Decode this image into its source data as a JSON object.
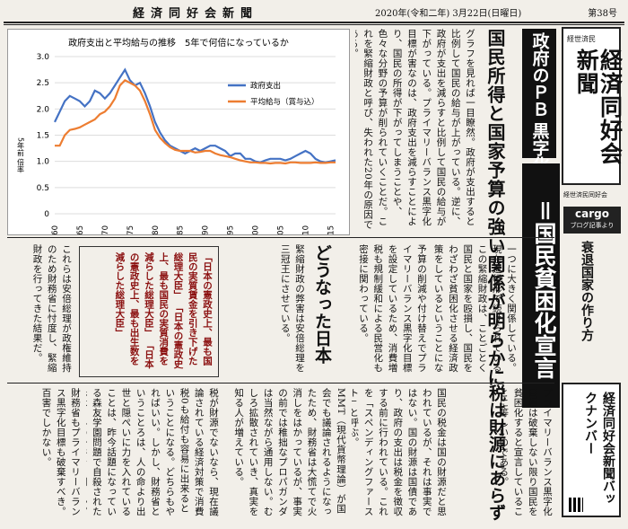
{
  "header": {
    "paper_name": "経済同好会新聞",
    "date": "2020年(令和二年) 3月22日(日曜日)",
    "issue": "第38号"
  },
  "chart_data": {
    "type": "line",
    "title": "政府支出と平均給与の推移　5年で何倍になっているか",
    "ylabel": "5年前 倍率",
    "xlabel": "",
    "x": [
      1960,
      1961,
      1962,
      1963,
      1964,
      1965,
      1966,
      1967,
      1968,
      1969,
      1970,
      1971,
      1972,
      1973,
      1974,
      1975,
      1976,
      1977,
      1978,
      1979,
      1980,
      1981,
      1982,
      1983,
      1984,
      1985,
      1986,
      1987,
      1988,
      1989,
      1990,
      1991,
      1992,
      1993,
      1994,
      1995,
      1996,
      1997,
      1998,
      1999,
      2000,
      2001,
      2002,
      2003,
      2004,
      2005,
      2006,
      2007,
      2008,
      2009,
      2010,
      2011,
      2012,
      2013,
      2014,
      2015,
      2016
    ],
    "ylim": [
      0,
      3.0
    ],
    "yticks": [
      "0",
      "0.5",
      "1.0",
      "1.5",
      "2.0",
      "2.5",
      "3.0"
    ],
    "xticks": [
      "1960",
      "1965",
      "1970",
      "1975",
      "1980",
      "1985",
      "1990",
      "1995",
      "2000",
      "2005",
      "2010",
      "2015"
    ],
    "series": [
      {
        "name": "政府支出",
        "color": "#4472c4",
        "values": [
          1.75,
          1.95,
          2.15,
          2.25,
          2.2,
          2.15,
          2.05,
          2.15,
          2.35,
          2.3,
          2.2,
          2.3,
          2.45,
          2.6,
          2.75,
          2.55,
          2.45,
          2.5,
          2.3,
          2.05,
          1.75,
          1.55,
          1.4,
          1.3,
          1.25,
          1.2,
          1.15,
          1.2,
          1.25,
          1.2,
          1.25,
          1.3,
          1.3,
          1.25,
          1.2,
          1.1,
          1.15,
          1.15,
          1.05,
          1.05,
          1.0,
          0.98,
          1.02,
          1.05,
          1.05,
          1.05,
          1.02,
          1.05,
          1.1,
          1.15,
          1.2,
          1.15,
          1.05,
          1.0,
          0.98,
          1.0,
          1.02
        ]
      },
      {
        "name": "平均給与（賞与込）",
        "color": "#ed7d31",
        "values": [
          1.3,
          1.3,
          1.5,
          1.6,
          1.62,
          1.65,
          1.7,
          1.75,
          1.8,
          1.9,
          1.95,
          2.05,
          2.2,
          2.45,
          2.55,
          2.5,
          2.45,
          2.35,
          2.15,
          1.9,
          1.6,
          1.45,
          1.35,
          1.27,
          1.22,
          1.2,
          1.2,
          1.2,
          1.17,
          1.18,
          1.2,
          1.2,
          1.15,
          1.12,
          1.1,
          1.08,
          1.05,
          1.02,
          1.0,
          0.98,
          0.98,
          0.97,
          0.97,
          0.96,
          0.97,
          0.97,
          0.96,
          0.98,
          0.98,
          0.97,
          0.97,
          0.97,
          0.98,
          0.97,
          0.97,
          0.98,
          0.98
        ]
      }
    ]
  },
  "masthead": {
    "small": "経世済民",
    "title": "経済同好会新聞",
    "sub": "経世済民同好会"
  },
  "cargo": {
    "label": "cargo",
    "sub": "ブログ記事より",
    "article_title": "衰退国家の作り方"
  },
  "backnumber": {
    "title": "経済同好会新聞バックナンバー"
  },
  "headlines": {
    "black": [
      "政府のＰＢ",
      "黒字化目標"
    ],
    "big": "＝国民貧困化宣言",
    "sub": "国民所得と国家予算の強い関係が明らかに",
    "doto": "どうなった日本",
    "zei": "税は財源にあらず"
  },
  "columns": {
    "top_right": "グラフを見れば一目瞭然。政府が支出すると比例して国民の給与が上がっている。逆に、政府が支出を減らすと比例して国民の給与が下がっている。プライマリーバランス黒字化目標が害なのは、政府支出を減らすことにより、国民の所得が下がってしまうことや、色々な分野の予算が削られていくことだ。これを緊縮財政と呼び、失われた20年の原因である。",
    "mid_right": "一つに大きく関係している。現在進行形で続けられているこの緊縮財政は、ことごとく国民と国家を殴損し、国民をわざわざ貧困化させる経済政策をしているということになる。",
    "mid_center": "予算の削減や付け替えでプライマリーバランス黒字化目標を設定しているため、消費増税も規制緩和による民営化も密接に関わっている。",
    "mid_left": "緊縮財政の弊害は安倍総理を三冠王にさせている。",
    "quote_intro": "「日本の憲政史上、最も国民の実質賃金を引き下げた総理大臣」",
    "quote_1": "「日本の憲政史上、最も国民の実質消費を減らした総理大臣」",
    "quote_2": "「日本の憲政史上、最も出生数を減らした総理大臣」",
    "left_mid": "これらは安倍総理が政権維持のため財務省に忖度し、緊縮財政を行ってきた結果だ。",
    "bottom_1": "プライマリーバランス黒字化目標は破棄しない限り国民を貧困化すると宣言していることに等しいのである。",
    "bottom_2": "国民の税金は国の財源だと思われているが、それは事実ではない。国の財源は国債であり、政府の支出は税金を徴収する前に行われている。これを「スペンディングファースト」と呼ぶ。",
    "bottom_3": "MMT（現代貨幣理論）が国会でも議論されるようになったため、財務省は大慌てで火消しをはかっているが、事実の前では稚拙なプロパガンダは当然ながら通用しない。むしろ拡散されていき、真実を知る人が増えている。",
    "bottom_4": "税が財源でないなら、現在議論されている経済対策で消費税0も給付も容易に出来るということになる。どちらもやればいい。しかし、財務省ということろは、人の命より出世と隠ぺいに力を入れていることは、昨今話題になっている森友学園問題で自殺された赤木さんの一件でも明らか。",
    "bottom_5": "財務省もプライマリーバランス黒字化目標も破棄すべき。百害でしかない。"
  }
}
